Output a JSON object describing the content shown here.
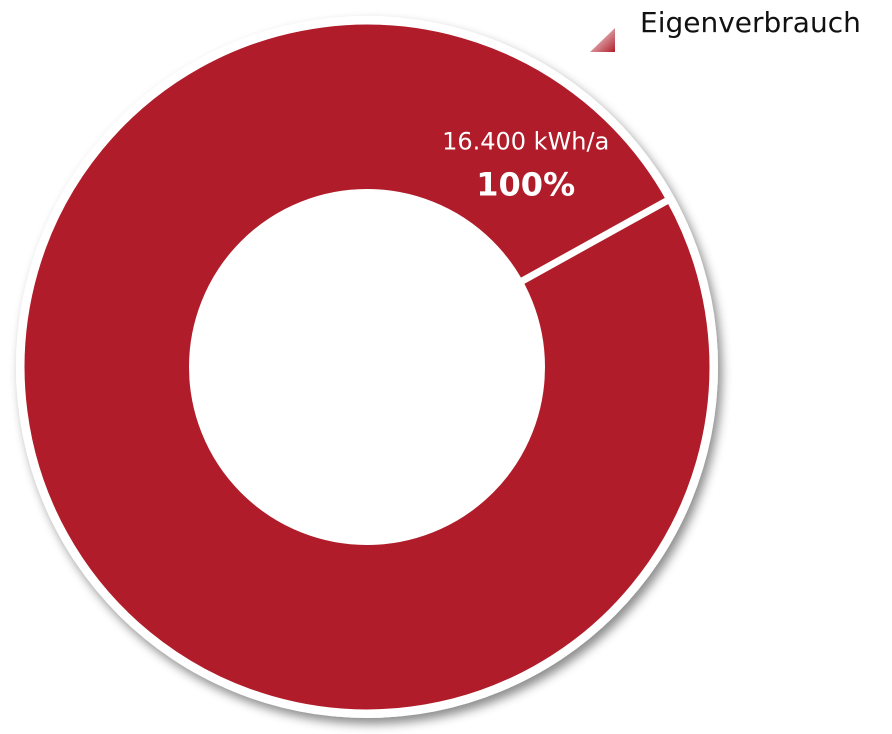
{
  "chart_data": {
    "type": "donut",
    "categories": [
      "Eigenverbrauch"
    ],
    "values": [
      100
    ],
    "value_labels": [
      "100%"
    ],
    "energy_values": [
      16400
    ],
    "energy_labels": [
      "16.400 kWh/a"
    ],
    "colors": [
      "#b01e2b"
    ],
    "legend": "top-right"
  }
}
